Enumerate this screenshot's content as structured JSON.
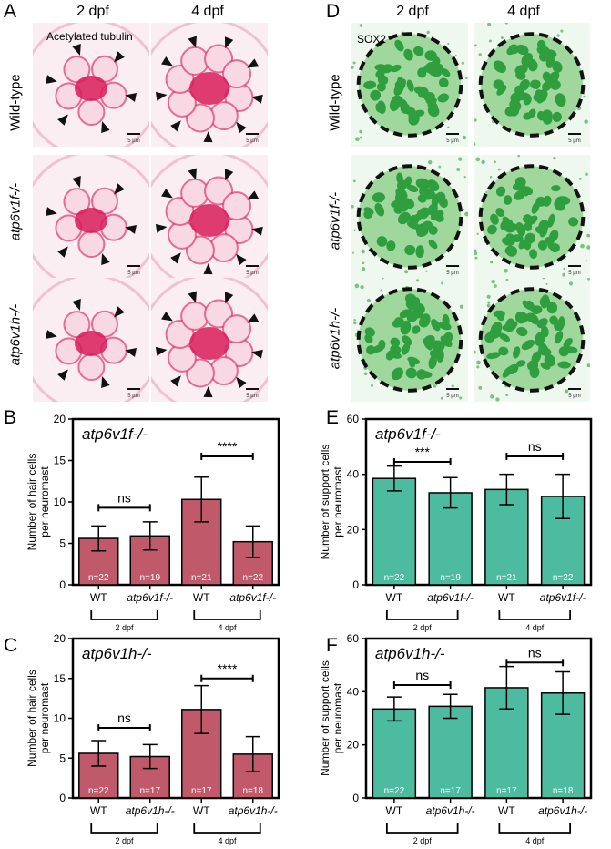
{
  "figure": {
    "letters": {
      "A": "A",
      "B": "B",
      "C": "C",
      "D": "D",
      "E": "E",
      "F": "F"
    },
    "micro": {
      "col_heads": [
        "2 dpf",
        "4 dpf"
      ],
      "row_heads": [
        "Wild-type",
        "atp6v1f-/-",
        "atp6v1h-/-"
      ],
      "stain_A": "Acetylated tubulin",
      "stain_D": "SOX2",
      "scale_label": "5 µm",
      "hair_color": "#d81b5a",
      "support_color": "#2e9e3e"
    }
  },
  "chart_data": [
    {
      "panel": "B",
      "type": "bar",
      "title": "atp6v1f-/-",
      "ylabel": "Number of hair cells per neuromast",
      "ylim": [
        0,
        20
      ],
      "yticks": [
        0,
        5,
        10,
        15,
        20
      ],
      "categories": [
        "WT",
        "atp6v1f-/-",
        "WT",
        "atp6v1f-/-"
      ],
      "values": [
        5.6,
        5.9,
        10.3,
        5.2
      ],
      "errors": [
        1.5,
        1.7,
        2.7,
        1.9
      ],
      "n_labels": [
        "n=22",
        "n=19",
        "n=21",
        "n=22"
      ],
      "groups": [
        "2 dpf",
        "4 dpf"
      ],
      "comparisons": [
        {
          "pair": [
            0,
            1
          ],
          "label": "ns",
          "y": 9.3
        },
        {
          "pair": [
            2,
            3
          ],
          "label": "****",
          "y": 15.5
        }
      ],
      "bar_color": "#c0596a"
    },
    {
      "panel": "C",
      "type": "bar",
      "title": "atp6v1h-/-",
      "ylabel": "Number of hair cells per neuromast",
      "ylim": [
        0,
        20
      ],
      "yticks": [
        0,
        5,
        10,
        15,
        20
      ],
      "categories": [
        "WT",
        "atp6v1h-/-",
        "WT",
        "atp6v1h-/-"
      ],
      "values": [
        5.6,
        5.2,
        11.1,
        5.5
      ],
      "errors": [
        1.6,
        1.5,
        3.0,
        2.2
      ],
      "n_labels": [
        "n=22",
        "n=17",
        "n=17",
        "n=18"
      ],
      "groups": [
        "2 dpf",
        "4 dpf"
      ],
      "comparisons": [
        {
          "pair": [
            0,
            1
          ],
          "label": "ns",
          "y": 8.8
        },
        {
          "pair": [
            2,
            3
          ],
          "label": "****",
          "y": 15.0
        }
      ],
      "bar_color": "#c0596a"
    },
    {
      "panel": "E",
      "type": "bar",
      "title": "atp6v1f-/-",
      "ylabel": "Number of support cells per neuromast",
      "ylim": [
        0,
        60
      ],
      "yticks": [
        0,
        20,
        40,
        60
      ],
      "categories": [
        "WT",
        "atp6v1f-/-",
        "WT",
        "atp6v1f-/-"
      ],
      "values": [
        38.5,
        33.3,
        34.5,
        32.0
      ],
      "errors": [
        4.5,
        5.5,
        5.5,
        8.0
      ],
      "n_labels": [
        "n=22",
        "n=19",
        "n=21",
        "n=22"
      ],
      "groups": [
        "2 dpf",
        "4 dpf"
      ],
      "comparisons": [
        {
          "pair": [
            0,
            1
          ],
          "label": "***",
          "y": 44.5
        },
        {
          "pair": [
            2,
            3
          ],
          "label": "ns",
          "y": 46.5
        }
      ],
      "bar_color": "#4dbb9f"
    },
    {
      "panel": "F",
      "type": "bar",
      "title": "atp6v1h-/-",
      "ylabel": "Number of support cells per neuromast",
      "ylim": [
        0,
        60
      ],
      "yticks": [
        0,
        20,
        40,
        60
      ],
      "categories": [
        "WT",
        "atp6v1h-/-",
        "WT",
        "atp6v1h-/-"
      ],
      "values": [
        33.5,
        34.5,
        41.5,
        39.5
      ],
      "errors": [
        4.5,
        4.5,
        8.0,
        8.0
      ],
      "n_labels": [
        "n=22",
        "n=17",
        "n=17",
        "n=18"
      ],
      "groups": [
        "2 dpf",
        "4 dpf"
      ],
      "comparisons": [
        {
          "pair": [
            0,
            1
          ],
          "label": "ns",
          "y": 42.5
        },
        {
          "pair": [
            2,
            3
          ],
          "label": "ns",
          "y": 51.0
        }
      ],
      "bar_color": "#4dbb9f"
    }
  ]
}
